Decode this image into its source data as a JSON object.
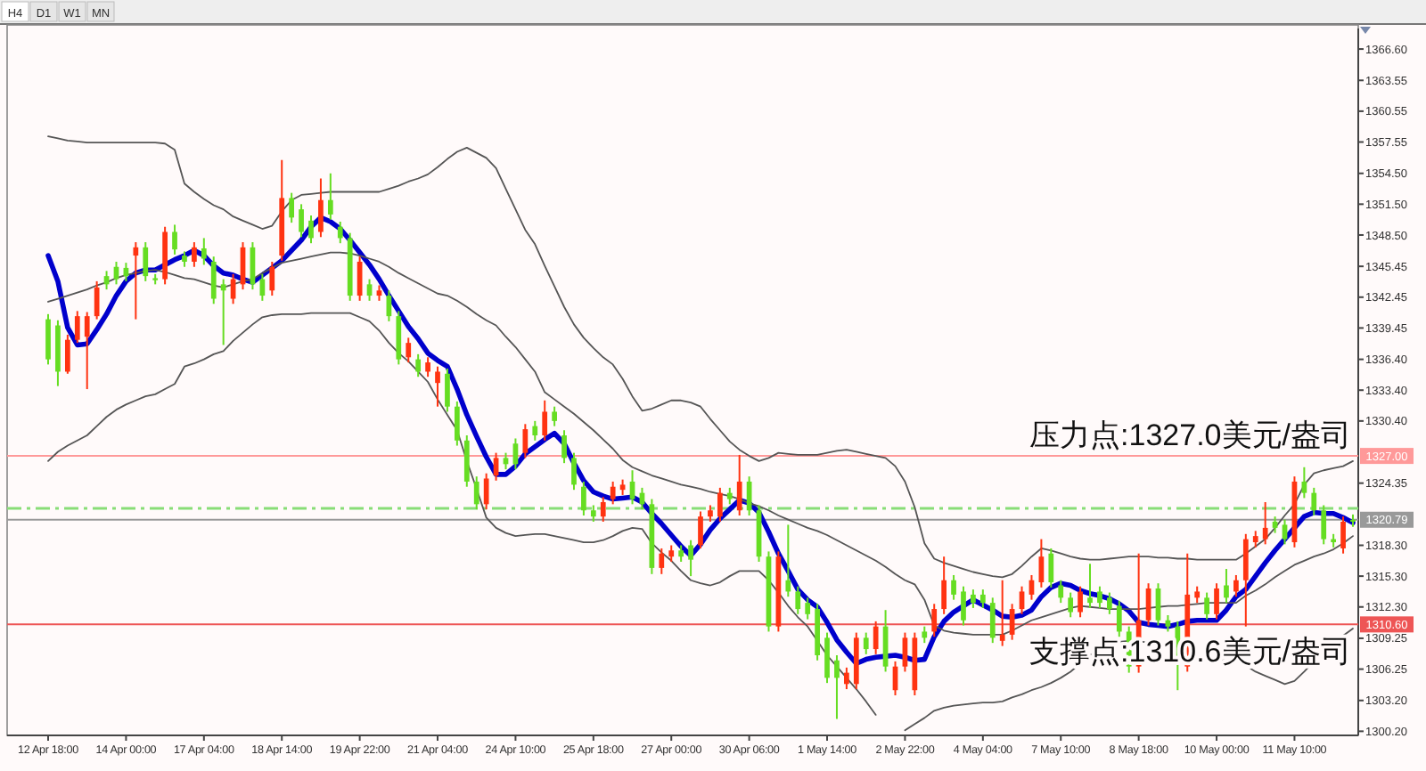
{
  "chart_data": {
    "type": "candlestick",
    "categories": [
      "12 Apr 18:00",
      null,
      null,
      null,
      null,
      null,
      null,
      null,
      "14 Apr 00:00",
      null,
      null,
      null,
      null,
      null,
      null,
      null,
      "17 Apr 04:00",
      null,
      null,
      null,
      null,
      null,
      null,
      null,
      "18 Apr 14:00",
      null,
      null,
      null,
      null,
      null,
      null,
      null,
      "19 Apr 22:00",
      null,
      null,
      null,
      null,
      null,
      null,
      null,
      "21 Apr 04:00",
      null,
      null,
      null,
      null,
      null,
      null,
      null,
      "24 Apr 10:00",
      null,
      null,
      null,
      null,
      null,
      null,
      null,
      "25 Apr 18:00",
      null,
      null,
      null,
      null,
      null,
      null,
      null,
      "27 Apr 00:00",
      null,
      null,
      null,
      null,
      null,
      null,
      null,
      "30 Apr 06:00",
      null,
      null,
      null,
      null,
      null,
      null,
      null,
      "1 May 14:00",
      null,
      null,
      null,
      null,
      null,
      null,
      null,
      "2 May 22:00",
      null,
      null,
      null,
      null,
      null,
      null,
      null,
      "4 May 04:00",
      null,
      null,
      null,
      null,
      null,
      null,
      null,
      "7 May 10:00",
      null,
      null,
      null,
      null,
      null,
      null,
      null,
      "8 May 18:00",
      null,
      null,
      null,
      null,
      null,
      null,
      null,
      "10 May 00:00",
      null,
      null,
      null,
      null,
      null,
      null,
      null,
      "11 May 10:00",
      null,
      null,
      null,
      null,
      null,
      null
    ],
    "ohlc": [
      [
        1336.4,
        1340.8,
        1335.9,
        1340.3
      ],
      [
        1335.2,
        1340.2,
        1333.8,
        1339.7
      ],
      [
        1338.3,
        1338.8,
        1335.0,
        1335.2
      ],
      [
        1340.6,
        1341.1,
        1338.0,
        1338.3
      ],
      [
        1340.6,
        1341.0,
        1333.5,
        1338.6
      ],
      [
        1343.4,
        1344.0,
        1340.3,
        1340.6
      ],
      [
        1343.7,
        1345.0,
        1343.2,
        1344.5
      ],
      [
        1344.2,
        1345.9,
        1343.7,
        1345.4
      ],
      [
        1344.5,
        1345.8,
        1344.0,
        1345.3
      ],
      [
        1347.3,
        1347.8,
        1340.3,
        1346.5
      ],
      [
        1344.5,
        1347.8,
        1344.0,
        1347.3
      ],
      [
        1344.1,
        1344.7,
        1343.7,
        1344.3
      ],
      [
        1348.8,
        1349.3,
        1343.7,
        1344.2
      ],
      [
        1347.1,
        1349.5,
        1346.6,
        1348.8
      ],
      [
        1345.9,
        1346.9,
        1345.4,
        1346.5
      ],
      [
        1347.3,
        1347.8,
        1345.4,
        1345.9
      ],
      [
        1346.2,
        1348.2,
        1345.6,
        1347.2
      ],
      [
        1342.3,
        1346.4,
        1341.8,
        1345.9
      ],
      [
        1343.1,
        1344.2,
        1337.8,
        1343.7
      ],
      [
        1344.2,
        1344.7,
        1341.8,
        1342.3
      ],
      [
        1347.3,
        1347.8,
        1343.2,
        1343.7
      ],
      [
        1343.7,
        1347.8,
        1343.2,
        1347.3
      ],
      [
        1342.6,
        1344.7,
        1342.1,
        1344.2
      ],
      [
        1345.4,
        1345.9,
        1342.6,
        1343.1
      ],
      [
        1352.1,
        1355.8,
        1346.0,
        1346.5
      ],
      [
        1350.2,
        1352.6,
        1349.7,
        1352.1
      ],
      [
        1348.8,
        1351.5,
        1348.3,
        1351.0
      ],
      [
        1348.2,
        1350.4,
        1347.7,
        1349.9
      ],
      [
        1351.9,
        1354.0,
        1348.3,
        1348.8
      ],
      [
        1350.5,
        1354.5,
        1350.0,
        1351.9
      ],
      [
        1348.2,
        1349.8,
        1347.7,
        1349.3
      ],
      [
        1342.6,
        1348.7,
        1342.1,
        1348.2
      ],
      [
        1345.9,
        1346.4,
        1342.1,
        1342.6
      ],
      [
        1342.6,
        1344.2,
        1342.1,
        1343.7
      ],
      [
        1343.1,
        1343.6,
        1342.1,
        1342.6
      ],
      [
        1340.6,
        1343.1,
        1340.1,
        1342.6
      ],
      [
        1336.4,
        1341.1,
        1335.9,
        1340.6
      ],
      [
        1338.0,
        1338.5,
        1336.1,
        1336.6
      ],
      [
        1335.2,
        1336.9,
        1334.7,
        1336.4
      ],
      [
        1336.1,
        1336.6,
        1334.7,
        1335.2
      ],
      [
        1335.2,
        1335.7,
        1331.8,
        1334.1
      ],
      [
        1331.8,
        1335.5,
        1331.3,
        1335.0
      ],
      [
        1328.5,
        1332.3,
        1328.0,
        1331.8
      ],
      [
        1324.5,
        1329.0,
        1324.0,
        1328.5
      ],
      [
        1322.3,
        1325.0,
        1321.8,
        1324.5
      ],
      [
        1324.8,
        1325.3,
        1321.8,
        1322.3
      ],
      [
        1326.8,
        1327.3,
        1324.6,
        1325.1
      ],
      [
        1326.2,
        1327.3,
        1325.7,
        1326.8
      ],
      [
        1326.2,
        1328.7,
        1325.7,
        1328.2
      ],
      [
        1329.6,
        1330.1,
        1326.8,
        1327.3
      ],
      [
        1329.0,
        1330.4,
        1328.5,
        1329.9
      ],
      [
        1331.3,
        1332.4,
        1328.5,
        1329.0
      ],
      [
        1330.4,
        1331.8,
        1329.9,
        1331.3
      ],
      [
        1326.8,
        1329.5,
        1326.3,
        1329.0
      ],
      [
        1324.2,
        1327.3,
        1323.7,
        1326.8
      ],
      [
        1321.7,
        1324.5,
        1321.2,
        1324.0
      ],
      [
        1321.1,
        1322.2,
        1320.6,
        1321.7
      ],
      [
        1322.5,
        1323.0,
        1320.6,
        1321.1
      ],
      [
        1324.0,
        1324.5,
        1322.3,
        1322.8
      ],
      [
        1324.2,
        1324.7,
        1323.2,
        1323.7
      ],
      [
        1322.8,
        1325.6,
        1322.3,
        1324.5
      ],
      [
        1322.3,
        1323.9,
        1321.8,
        1323.4
      ],
      [
        1316.1,
        1322.8,
        1315.5,
        1322.3
      ],
      [
        1317.5,
        1318.0,
        1315.5,
        1316.1
      ],
      [
        1317.8,
        1318.3,
        1316.7,
        1317.2
      ],
      [
        1317.2,
        1318.3,
        1316.7,
        1317.8
      ],
      [
        1316.9,
        1318.8,
        1315.3,
        1318.3
      ],
      [
        1321.1,
        1321.6,
        1318.0,
        1318.3
      ],
      [
        1321.7,
        1322.2,
        1320.6,
        1321.1
      ],
      [
        1323.4,
        1323.9,
        1320.6,
        1321.1
      ],
      [
        1322.8,
        1323.9,
        1322.3,
        1323.4
      ],
      [
        1324.5,
        1327.1,
        1321.2,
        1321.7
      ],
      [
        1321.7,
        1325.0,
        1321.2,
        1324.5
      ],
      [
        1317.2,
        1322.2,
        1316.7,
        1321.7
      ],
      [
        1310.4,
        1317.7,
        1309.9,
        1317.2
      ],
      [
        1317.2,
        1317.7,
        1309.9,
        1310.4
      ],
      [
        1313.8,
        1320.3,
        1313.3,
        1314.9
      ],
      [
        1312.1,
        1314.3,
        1311.6,
        1313.8
      ],
      [
        1311.6,
        1313.2,
        1311.1,
        1312.7
      ],
      [
        1307.6,
        1312.6,
        1307.1,
        1312.1
      ],
      [
        1305.4,
        1309.8,
        1304.9,
        1309.3
      ],
      [
        1305.4,
        1307.6,
        1301.4,
        1307.1
      ],
      [
        1305.9,
        1306.4,
        1304.3,
        1304.8
      ],
      [
        1309.3,
        1309.8,
        1304.3,
        1304.8
      ],
      [
        1308.2,
        1309.8,
        1307.7,
        1309.3
      ],
      [
        1310.4,
        1310.9,
        1307.7,
        1308.2
      ],
      [
        1306.5,
        1312.0,
        1306.0,
        1310.4
      ],
      [
        1306.5,
        1307.0,
        1303.7,
        1304.2
      ],
      [
        1309.3,
        1309.8,
        1306.0,
        1306.5
      ],
      [
        1309.3,
        1309.8,
        1303.7,
        1304.2
      ],
      [
        1309.3,
        1310.4,
        1308.8,
        1309.9
      ],
      [
        1312.1,
        1312.6,
        1309.4,
        1309.9
      ],
      [
        1314.9,
        1317.2,
        1311.6,
        1312.1
      ],
      [
        1313.5,
        1315.4,
        1313.0,
        1314.9
      ],
      [
        1311.0,
        1314.3,
        1310.5,
        1313.8
      ],
      [
        1312.7,
        1314.0,
        1312.2,
        1313.5
      ],
      [
        1312.7,
        1314.0,
        1312.2,
        1313.5
      ],
      [
        1309.3,
        1313.2,
        1308.8,
        1312.7
      ],
      [
        1309.6,
        1314.9,
        1308.5,
        1309.0
      ],
      [
        1312.1,
        1312.6,
        1309.1,
        1309.6
      ],
      [
        1313.8,
        1314.3,
        1311.6,
        1312.1
      ],
      [
        1314.9,
        1315.4,
        1313.0,
        1313.5
      ],
      [
        1317.2,
        1318.9,
        1314.2,
        1314.7
      ],
      [
        1314.7,
        1318.0,
        1314.2,
        1317.5
      ],
      [
        1313.2,
        1314.9,
        1312.7,
        1314.4
      ],
      [
        1311.8,
        1313.7,
        1311.3,
        1313.2
      ],
      [
        1313.8,
        1314.3,
        1311.3,
        1311.8
      ],
      [
        1312.7,
        1316.5,
        1312.2,
        1313.2
      ],
      [
        1312.7,
        1314.3,
        1312.2,
        1313.8
      ],
      [
        1312.1,
        1313.7,
        1311.6,
        1313.2
      ],
      [
        1309.9,
        1312.9,
        1309.4,
        1312.4
      ],
      [
        1306.5,
        1310.4,
        1305.9,
        1309.9
      ],
      [
        1311.0,
        1317.5,
        1305.9,
        1306.5
      ],
      [
        1314.1,
        1314.6,
        1310.5,
        1311.0
      ],
      [
        1311.0,
        1314.6,
        1310.5,
        1314.1
      ],
      [
        1310.4,
        1311.5,
        1309.9,
        1311.0
      ],
      [
        1306.8,
        1310.9,
        1304.2,
        1310.4
      ],
      [
        1313.5,
        1317.5,
        1306.0,
        1306.5
      ],
      [
        1313.8,
        1314.3,
        1312.7,
        1313.2
      ],
      [
        1311.6,
        1313.7,
        1311.1,
        1313.2
      ],
      [
        1314.1,
        1314.6,
        1311.1,
        1311.6
      ],
      [
        1313.2,
        1316.0,
        1312.7,
        1314.4
      ],
      [
        1314.9,
        1315.4,
        1313.3,
        1313.8
      ],
      [
        1318.9,
        1319.4,
        1310.4,
        1314.9
      ],
      [
        1319.2,
        1319.7,
        1318.1,
        1318.6
      ],
      [
        1320.0,
        1322.5,
        1318.4,
        1318.9
      ],
      [
        1320.0,
        1321.1,
        1319.5,
        1320.6
      ],
      [
        1318.9,
        1320.8,
        1318.4,
        1320.3
      ],
      [
        1324.5,
        1325.0,
        1318.1,
        1318.6
      ],
      [
        1323.4,
        1325.9,
        1322.9,
        1324.5
      ],
      [
        1321.7,
        1323.9,
        1321.2,
        1323.4
      ],
      [
        1318.9,
        1322.2,
        1318.4,
        1321.7
      ],
      [
        1318.6,
        1319.4,
        1318.1,
        1318.9
      ],
      [
        1320.6,
        1321.1,
        1317.5,
        1318.0
      ],
      [
        1320.6,
        1321.3,
        1320.1,
        1320.79
      ]
    ],
    "colors": [
      "#66dd22",
      "#66dd22",
      "#ff3311",
      "#ff3311",
      "#ff3311",
      "#ff3311",
      "#66dd22",
      "#66dd22",
      "#66dd22",
      "#ff3311",
      "#66dd22",
      "#66dd22",
      "#ff3311",
      "#66dd22",
      "#66dd22",
      "#ff3311",
      "#66dd22",
      "#66dd22",
      "#66dd22",
      "#ff3311",
      "#ff3311",
      "#66dd22",
      "#66dd22",
      "#ff3311",
      "#ff3311",
      "#66dd22",
      "#66dd22",
      "#66dd22",
      "#ff3311",
      "#66dd22",
      "#66dd22",
      "#66dd22",
      "#ff3311",
      "#66dd22",
      "#ff3311",
      "#66dd22",
      "#66dd22",
      "#ff3311",
      "#66dd22",
      "#ff3311",
      "#ff3311",
      "#66dd22",
      "#66dd22",
      "#66dd22",
      "#66dd22",
      "#ff3311",
      "#ff3311",
      "#66dd22",
      "#66dd22",
      "#ff3311",
      "#66dd22",
      "#ff3311",
      "#66dd22",
      "#66dd22",
      "#66dd22",
      "#66dd22",
      "#66dd22",
      "#ff3311",
      "#ff3311",
      "#ff3311",
      "#66dd22",
      "#66dd22",
      "#66dd22",
      "#ff3311",
      "#ff3311",
      "#66dd22",
      "#66dd22",
      "#ff3311",
      "#ff3311",
      "#ff3311",
      "#66dd22",
      "#ff3311",
      "#66dd22",
      "#66dd22",
      "#66dd22",
      "#ff3311",
      "#66dd22",
      "#66dd22",
      "#66dd22",
      "#66dd22",
      "#66dd22",
      "#66dd22",
      "#ff3311",
      "#ff3311",
      "#66dd22",
      "#ff3311",
      "#66dd22",
      "#ff3311",
      "#ff3311",
      "#ff3311",
      "#66dd22",
      "#ff3311",
      "#ff3311",
      "#66dd22",
      "#66dd22",
      "#66dd22",
      "#66dd22",
      "#66dd22",
      "#ff3311",
      "#ff3311",
      "#ff3311",
      "#ff3311",
      "#ff3311",
      "#66dd22",
      "#66dd22",
      "#66dd22",
      "#ff3311",
      "#66dd22",
      "#66dd22",
      "#66dd22",
      "#66dd22",
      "#66dd22",
      "#ff3311",
      "#ff3311",
      "#66dd22",
      "#66dd22",
      "#66dd22",
      "#ff3311",
      "#ff3311",
      "#66dd22",
      "#ff3311",
      "#66dd22",
      "#ff3311",
      "#ff3311",
      "#ff3311",
      "#ff3311",
      "#66dd22",
      "#66dd22",
      "#ff3311",
      "#66dd22",
      "#66dd22",
      "#66dd22",
      "#66dd22",
      "#ff3311",
      "#66dd22"
    ],
    "series": [
      {
        "type": "line",
        "color": "#0000cc",
        "values": [
          1346.5,
          1344.0,
          1339.5,
          1337.8,
          1337.9,
          1339.3,
          1340.8,
          1342.6,
          1344.0,
          1344.8,
          1345.1,
          1345.1,
          1345.6,
          1346.1,
          1346.5,
          1347.0,
          1346.5,
          1345.5,
          1344.8,
          1344.6,
          1344.2,
          1343.9,
          1344.6,
          1345.3,
          1346.0,
          1347.0,
          1348.0,
          1349.3,
          1350.2,
          1349.8,
          1349.1,
          1348.0,
          1346.8,
          1345.6,
          1344.2,
          1342.6,
          1341.1,
          1339.6,
          1338.4,
          1337.0,
          1336.3,
          1335.7,
          1333.5,
          1331.0,
          1328.9,
          1326.9,
          1325.2,
          1325.2,
          1326.0,
          1327.2,
          1327.9,
          1328.6,
          1329.2,
          1328.2,
          1326.3,
          1324.6,
          1323.5,
          1323.1,
          1322.8,
          1322.9,
          1323.0,
          1322.5,
          1321.4,
          1320.4,
          1319.3,
          1318.2,
          1317.3,
          1318.4,
          1319.8,
          1320.9,
          1321.8,
          1322.7,
          1322.4,
          1321.5,
          1319.6,
          1317.5,
          1315.8,
          1314.0,
          1313.0,
          1312.3,
          1310.8,
          1309.1,
          1307.9,
          1306.8,
          1307.2,
          1307.4,
          1307.5,
          1307.6,
          1307.4,
          1307.1,
          1307.2,
          1309.4,
          1310.9,
          1311.8,
          1312.4,
          1313.0,
          1312.5,
          1312.0,
          1311.4,
          1311.3,
          1311.5,
          1312.0,
          1313.3,
          1314.2,
          1314.6,
          1314.4,
          1313.9,
          1313.6,
          1313.4,
          1313.1,
          1312.6,
          1311.9,
          1310.8,
          1310.6,
          1310.5,
          1310.4,
          1310.6,
          1310.9,
          1311.0,
          1311.0,
          1311.0,
          1312.0,
          1313.3,
          1314.0,
          1315.3,
          1316.6,
          1317.8,
          1318.9,
          1320.0,
          1321.1,
          1321.5,
          1321.4,
          1321.4,
          1321.0,
          1320.5
        ]
      },
      {
        "type": "line",
        "color": "#555555",
        "values": [
          1358.1,
          1357.9,
          1357.7,
          1357.6,
          1357.5,
          1357.5,
          1357.5,
          1357.5,
          1357.5,
          1357.5,
          1357.5,
          1357.5,
          1357.4,
          1356.8,
          1353.5,
          1352.7,
          1352.0,
          1351.4,
          1351.0,
          1350.3,
          1349.9,
          1349.5,
          1349.1,
          1349.4,
          1350.8,
          1351.9,
          1352.4,
          1352.5,
          1352.6,
          1352.7,
          1352.7,
          1352.7,
          1352.7,
          1352.7,
          1352.7,
          1353.0,
          1353.3,
          1353.7,
          1354.0,
          1354.4,
          1355.1,
          1355.9,
          1356.6,
          1357.0,
          1356.5,
          1356.0,
          1355.0,
          1353.0,
          1351.0,
          1349.0,
          1347.6,
          1345.5,
          1343.5,
          1341.5,
          1339.8,
          1338.5,
          1337.5,
          1336.6,
          1335.9,
          1334.5,
          1332.8,
          1331.4,
          1331.6,
          1332.0,
          1332.4,
          1332.4,
          1332.2,
          1331.8,
          1330.6,
          1329.5,
          1328.4,
          1327.6,
          1327.0,
          1326.5,
          1326.8,
          1327.3,
          1327.2,
          1327.1,
          1327.1,
          1327.1,
          1327.3,
          1327.5,
          1327.6,
          1327.4,
          1327.2,
          1327.0,
          1326.8,
          1326.0,
          1324.5,
          1322.0,
          1318.5,
          1317.0,
          1316.6,
          1316.3,
          1316.0,
          1315.7,
          1315.5,
          1315.3,
          1315.2,
          1315.5,
          1316.3,
          1317.2,
          1318.0,
          1317.8,
          1317.5,
          1317.2,
          1317.0,
          1316.9,
          1316.9,
          1317.0,
          1317.1,
          1317.2,
          1317.2,
          1317.2,
          1317.1,
          1317.1,
          1317.0,
          1317.0,
          1316.9,
          1316.9,
          1316.9,
          1316.9,
          1316.9,
          1317.5,
          1318.2,
          1318.9,
          1320.0,
          1321.2,
          1322.3,
          1324.2,
          1325.3,
          1325.6,
          1325.8,
          1326.0,
          1326.5
        ]
      },
      {
        "type": "line",
        "color": "#555555",
        "values": [
          1342.0,
          1342.3,
          1342.6,
          1342.9,
          1343.2,
          1343.6,
          1343.9,
          1344.3,
          1344.6,
          1344.8,
          1345.0,
          1345.1,
          1344.9,
          1344.6,
          1344.3,
          1344.2,
          1343.9,
          1343.6,
          1343.4,
          1343.7,
          1344.0,
          1344.2,
          1344.8,
          1345.3,
          1345.8,
          1346.0,
          1346.2,
          1346.4,
          1346.6,
          1346.8,
          1346.8,
          1346.7,
          1346.5,
          1346.2,
          1345.9,
          1345.4,
          1344.8,
          1344.3,
          1343.8,
          1343.3,
          1342.8,
          1342.6,
          1342.1,
          1341.5,
          1340.8,
          1340.2,
          1339.7,
          1338.6,
          1337.6,
          1336.4,
          1335.2,
          1333.2,
          1332.5,
          1331.8,
          1331.1,
          1330.3,
          1329.5,
          1328.6,
          1327.7,
          1326.6,
          1325.9,
          1325.5,
          1325.1,
          1324.8,
          1324.5,
          1324.2,
          1324.0,
          1323.8,
          1323.5,
          1323.3,
          1323.1,
          1322.8,
          1322.4,
          1322.1,
          1321.7,
          1321.2,
          1320.8,
          1320.4,
          1320.0,
          1319.7,
          1319.3,
          1318.8,
          1318.3,
          1317.8,
          1317.3,
          1316.8,
          1316.2,
          1315.5,
          1314.9,
          1314.5,
          1313.0,
          1310.5,
          1310.0,
          1309.8,
          1309.7,
          1309.6,
          1309.6,
          1309.6,
          1309.6,
          1310.0,
          1310.5,
          1311.0,
          1311.3,
          1311.6,
          1311.9,
          1312.2,
          1312.4,
          1312.3,
          1312.2,
          1312.1,
          1312.1,
          1312.1,
          1312.1,
          1312.2,
          1312.3,
          1312.4,
          1312.4,
          1312.5,
          1312.6,
          1312.7,
          1312.7,
          1312.7,
          1312.7,
          1313.4,
          1313.9,
          1314.5,
          1315.2,
          1315.8,
          1316.4,
          1316.8,
          1317.2,
          1317.5,
          1317.9,
          1318.5,
          1319.2
        ]
      },
      {
        "type": "line",
        "color": "#555555",
        "values": [
          1326.5,
          1327.4,
          1328.0,
          1328.5,
          1329.0,
          1329.9,
          1330.8,
          1331.5,
          1332.0,
          1332.4,
          1332.8,
          1333.0,
          1333.5,
          1334.0,
          1335.7,
          1336.0,
          1336.4,
          1336.9,
          1337.2,
          1338.2,
          1339.0,
          1339.8,
          1340.5,
          1340.7,
          1340.8,
          1340.8,
          1340.8,
          1340.9,
          1340.9,
          1340.9,
          1340.9,
          1340.9,
          1340.5,
          1340.1,
          1339.2,
          1338.0,
          1337.0,
          1336.2,
          1335.2,
          1334.2,
          1332.5,
          1331.0,
          1329.5,
          1326.5,
          1323.8,
          1321.0,
          1320.0,
          1319.5,
          1319.2,
          1319.3,
          1319.4,
          1319.4,
          1319.2,
          1319.0,
          1318.8,
          1318.6,
          1318.6,
          1318.8,
          1319.2,
          1319.7,
          1320.0,
          1319.9,
          1318.5,
          1317.6,
          1316.8,
          1315.8,
          1314.9,
          1314.6,
          1314.4,
          1314.7,
          1315.3,
          1315.8,
          1315.8,
          1315.8,
          1314.9,
          1313.7,
          1312.4,
          1311.3,
          1310.4,
          1309.0,
          1307.6,
          1306.5,
          1305.4,
          1304.3,
          1303.1,
          1301.8,
          null,
          null,
          1300.3,
          1300.9,
          1301.5,
          1302.2,
          1302.5,
          1302.7,
          1302.8,
          1302.9,
          1303.0,
          1303.0,
          1303.1,
          1303.5,
          1303.8,
          1304.2,
          1304.5,
          1304.9,
          1305.4,
          1306.0,
          1306.8,
          1307.6,
          1308.2,
          1308.7,
          1308.9,
          1309.0,
          1309.0,
          1308.8,
          1308.5,
          1308.2,
          1307.8,
          1307.5,
          1307.2,
          1307.1,
          1307.1,
          1307.1,
          1307.1,
          1306.6,
          1306.0,
          1305.6,
          1305.2,
          1304.8,
          1305.1,
          1306.0,
          1307.0,
          1307.9,
          1308.5,
          1309.5,
          1310.2
        ]
      }
    ],
    "ylim": [
      1299.8,
      1368.6
    ],
    "yticks": [
      {
        "value": 1366.6,
        "label": "1366.60"
      },
      {
        "value": 1363.55,
        "label": "1363.55"
      },
      {
        "value": 1360.55,
        "label": "1360.55"
      },
      {
        "value": 1357.55,
        "label": "1357.55"
      },
      {
        "value": 1354.5,
        "label": "1354.50"
      },
      {
        "value": 1351.5,
        "label": "1351.50"
      },
      {
        "value": 1348.5,
        "label": "1348.50"
      },
      {
        "value": 1345.45,
        "label": "1345.45"
      },
      {
        "value": 1342.45,
        "label": "1342.45"
      },
      {
        "value": 1339.45,
        "label": "1339.45"
      },
      {
        "value": 1336.4,
        "label": "1336.40"
      },
      {
        "value": 1333.4,
        "label": "1333.40"
      },
      {
        "value": 1330.4,
        "label": "1330.40"
      },
      {
        "value": 1324.35,
        "label": "1324.35"
      },
      {
        "value": 1318.3,
        "label": "1318.30"
      },
      {
        "value": 1315.3,
        "label": "1315.30"
      },
      {
        "value": 1312.3,
        "label": "1312.30"
      },
      {
        "value": 1309.25,
        "label": "1309.25"
      },
      {
        "value": 1306.25,
        "label": "1306.25"
      },
      {
        "value": 1303.2,
        "label": "1303.20"
      },
      {
        "value": 1300.2,
        "label": "1300.20"
      }
    ],
    "ref_lines": [
      {
        "axis": "y",
        "value": 1327.0,
        "label": "1327.00",
        "color": "#ff9999"
      },
      {
        "axis": "y",
        "value": 1321.9,
        "color": "#88dd77",
        "line_style": "dashed"
      },
      {
        "axis": "y",
        "value": 1320.79,
        "label": "1320.79",
        "color": "#999999"
      },
      {
        "axis": "y",
        "value": 1310.6,
        "label": "1310.60",
        "color": "#ee5555"
      }
    ],
    "annotations": [
      "H4",
      "D1",
      "W1",
      "MN",
      {
        "text": "压力点:1327.0美元/盎司",
        "y": 1327.0
      },
      {
        "text": "支撑点:1310.6美元/盎司",
        "y": 1310.6
      }
    ]
  }
}
